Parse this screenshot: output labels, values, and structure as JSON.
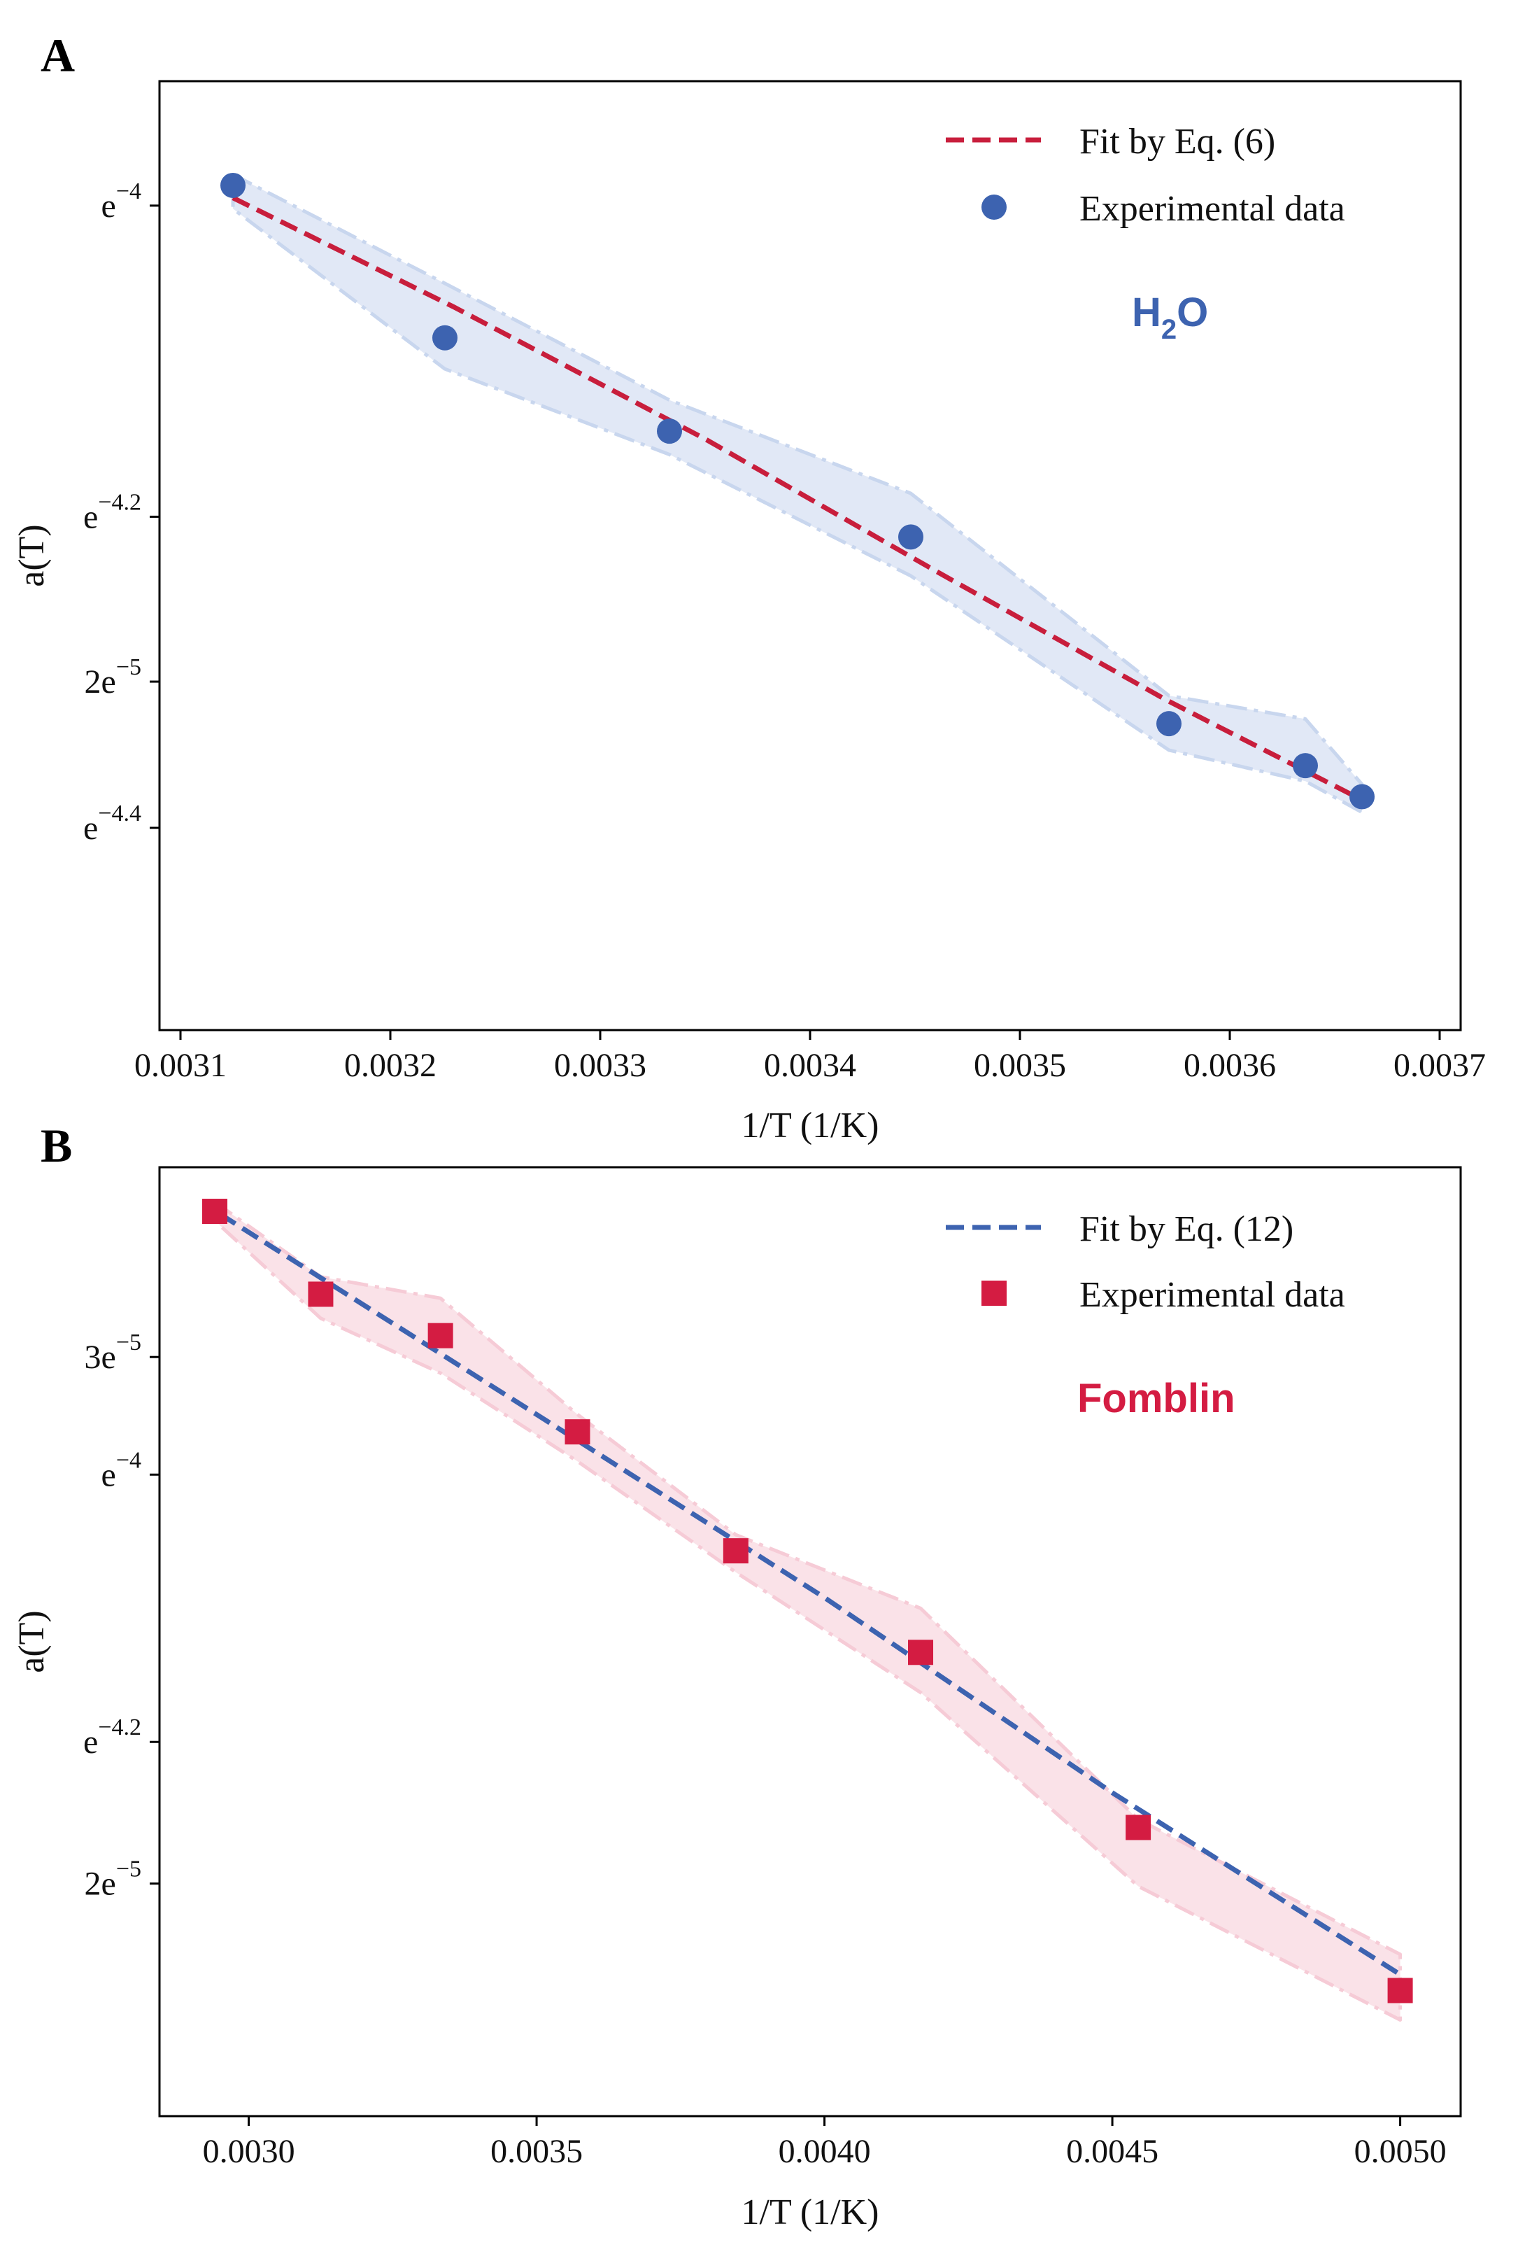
{
  "chart_data": [
    {
      "panel_label": "A",
      "type": "scatter",
      "xlabel": "1/T (1/K)",
      "ylabel": "a(T)",
      "xlim": [
        0.00309,
        0.00371
      ],
      "ylim": [
        -4.53,
        -3.92
      ],
      "x_ticks": [
        {
          "value": 0.0031,
          "label": "0.0031"
        },
        {
          "value": 0.0032,
          "label": "0.0032"
        },
        {
          "value": 0.0033,
          "label": "0.0033"
        },
        {
          "value": 0.0034,
          "label": "0.0034"
        },
        {
          "value": 0.0035,
          "label": "0.0035"
        },
        {
          "value": 0.0036,
          "label": "0.0036"
        },
        {
          "value": 0.0037,
          "label": "0.0037"
        }
      ],
      "y_ticks": [
        {
          "value": -4.0,
          "base": "e",
          "exp": "−4"
        },
        {
          "value": -4.2,
          "base": "e",
          "exp": "−4.2"
        },
        {
          "value": -4.306,
          "base": "2e",
          "exp": "−5"
        },
        {
          "value": -4.4,
          "base": "e",
          "exp": "−4.4"
        }
      ],
      "series": [
        {
          "name": "Fit by Eq. (6)",
          "kind": "line",
          "style": "dashed",
          "color": "#c81e3c",
          "x": [
            0.003125,
            0.00323,
            0.00335,
            0.00346,
            0.00357,
            0.003663
          ],
          "y": [
            -3.995,
            -4.065,
            -4.15,
            -4.235,
            -4.318,
            -4.382
          ]
        },
        {
          "name": "Experimental data",
          "kind": "scatter",
          "marker": "circle",
          "color": "#3d63b0",
          "x": [
            0.003125,
            0.003226,
            0.003333,
            0.003448,
            0.003571,
            0.003636,
            0.003663
          ],
          "y": [
            -3.987,
            -4.085,
            -4.145,
            -4.213,
            -4.333,
            -4.36,
            -4.38
          ]
        }
      ],
      "band": {
        "color": "#c8d6ee",
        "x": [
          0.003125,
          0.003226,
          0.003333,
          0.003448,
          0.003571,
          0.003636,
          0.003663
        ],
        "upper": [
          -3.98,
          -4.05,
          -4.125,
          -4.185,
          -4.315,
          -4.33,
          -4.372
        ],
        "lower": [
          -4.002,
          -4.105,
          -4.16,
          -4.238,
          -4.35,
          -4.37,
          -4.39
        ]
      },
      "annotation": {
        "text": "H",
        "sub": "2",
        "tail": "O",
        "color": "#3d63b0"
      }
    },
    {
      "panel_label": "B",
      "type": "scatter",
      "xlabel": "1/T (1/K)",
      "ylabel": "a(T)",
      "xlim": [
        0.002845,
        0.005105
      ],
      "ylim": [
        -4.48,
        -3.77
      ],
      "x_ticks": [
        {
          "value": 0.003,
          "label": "0.0030"
        },
        {
          "value": 0.0035,
          "label": "0.0035"
        },
        {
          "value": 0.004,
          "label": "0.0040"
        },
        {
          "value": 0.0045,
          "label": "0.0045"
        },
        {
          "value": 0.005,
          "label": "0.0050"
        }
      ],
      "y_ticks": [
        {
          "value": -3.912,
          "base": "3e",
          "exp": "−5"
        },
        {
          "value": -4.0,
          "base": "e",
          "exp": "−4"
        },
        {
          "value": -4.2,
          "base": "e",
          "exp": "−4.2"
        },
        {
          "value": -4.306,
          "base": "2e",
          "exp": "−5"
        }
      ],
      "series": [
        {
          "name": "Fit by Eq. (12)",
          "kind": "line",
          "style": "dashed",
          "color": "#3d63b0",
          "x": [
            0.00295,
            0.0035,
            0.004,
            0.0045,
            0.005
          ],
          "y": [
            -3.805,
            -3.955,
            -4.092,
            -4.238,
            -4.374
          ]
        },
        {
          "name": "Experimental data",
          "kind": "scatter",
          "marker": "square",
          "color": "#d41c42",
          "x": [
            0.002941,
            0.003125,
            0.003333,
            0.003571,
            0.003846,
            0.004167,
            0.004545,
            0.005
          ],
          "y": [
            -3.803,
            -3.865,
            -3.896,
            -3.968,
            -4.057,
            -4.133,
            -4.264,
            -4.386
          ]
        }
      ],
      "band": {
        "color": "#f6cbd6",
        "x": [
          0.002941,
          0.003125,
          0.003333,
          0.003571,
          0.003846,
          0.004167,
          0.004545,
          0.005
        ],
        "upper": [
          -3.796,
          -3.852,
          -3.868,
          -3.955,
          -4.045,
          -4.1,
          -4.258,
          -4.359
        ],
        "lower": [
          -3.81,
          -3.883,
          -3.924,
          -3.99,
          -4.073,
          -4.163,
          -4.308,
          -4.408
        ]
      },
      "annotation": {
        "text": "Fomblin",
        "sub": "",
        "tail": "",
        "color": "#d41c42"
      }
    }
  ]
}
